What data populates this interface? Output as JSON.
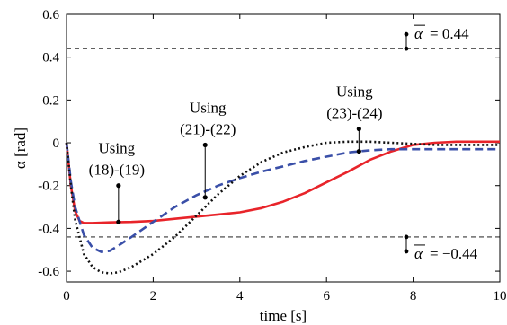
{
  "chart_data": {
    "type": "line",
    "xlabel": "time [s]",
    "ylabel": "α [rad]",
    "xlim": [
      0,
      10
    ],
    "ylim": [
      -0.65,
      0.6
    ],
    "xticks": [
      0,
      2,
      4,
      6,
      8,
      10
    ],
    "xtick_labels": [
      "0",
      "2",
      "4",
      "6",
      "8",
      "10"
    ],
    "yticks": [
      0.6,
      0.4,
      0.2,
      0,
      -0.2,
      -0.4,
      -0.6
    ],
    "ytick_labels": [
      "0.6",
      "0.4",
      "0.2",
      "0",
      "-0.2",
      "-0.4",
      "-0.6"
    ],
    "grid": false,
    "series": [
      {
        "color": "#e8242a",
        "style": "solid",
        "x": [
          0,
          0.1,
          0.2,
          0.3,
          0.4,
          0.6,
          1.0,
          1.5,
          2.0,
          2.5,
          3.0,
          3.5,
          4.0,
          4.5,
          5.0,
          5.5,
          6.0,
          6.5,
          7.0,
          7.5,
          8.0,
          8.5,
          9.0,
          9.5,
          10.0
        ],
        "y": [
          0,
          -0.2,
          -0.32,
          -0.365,
          -0.375,
          -0.375,
          -0.372,
          -0.37,
          -0.365,
          -0.355,
          -0.345,
          -0.335,
          -0.325,
          -0.305,
          -0.275,
          -0.235,
          -0.185,
          -0.135,
          -0.08,
          -0.04,
          -0.01,
          0.0,
          0.005,
          0.005,
          0.005
        ]
      },
      {
        "color": "#3a4fa8",
        "style": "dashed",
        "x": [
          0,
          0.1,
          0.2,
          0.4,
          0.6,
          0.8,
          1.0,
          1.2,
          1.5,
          2.0,
          2.5,
          3.0,
          3.5,
          4.0,
          4.5,
          5.0,
          5.5,
          6.0,
          6.5,
          7.0,
          7.5,
          8.0,
          8.5,
          9.0,
          9.5,
          10.0
        ],
        "y": [
          0,
          -0.18,
          -0.3,
          -0.43,
          -0.49,
          -0.51,
          -0.505,
          -0.48,
          -0.44,
          -0.37,
          -0.3,
          -0.245,
          -0.2,
          -0.165,
          -0.135,
          -0.11,
          -0.085,
          -0.065,
          -0.045,
          -0.035,
          -0.03,
          -0.03,
          -0.03,
          -0.03,
          -0.03,
          -0.03
        ]
      },
      {
        "color": "#111111",
        "style": "dotted",
        "x": [
          0,
          0.1,
          0.2,
          0.4,
          0.6,
          0.8,
          1.0,
          1.2,
          1.5,
          2.0,
          2.5,
          3.0,
          3.5,
          4.0,
          4.5,
          5.0,
          5.5,
          6.0,
          6.5,
          7.0,
          7.5,
          8.0,
          8.5,
          9.0,
          9.5,
          10.0
        ],
        "y": [
          0,
          -0.2,
          -0.36,
          -0.52,
          -0.58,
          -0.605,
          -0.61,
          -0.605,
          -0.58,
          -0.52,
          -0.44,
          -0.34,
          -0.24,
          -0.155,
          -0.09,
          -0.045,
          -0.02,
          0.0,
          0.005,
          0.005,
          0.0,
          -0.005,
          -0.01,
          -0.01,
          -0.01,
          -0.01
        ]
      }
    ],
    "hlines": [
      {
        "y": 0.44,
        "label_symbol": "α",
        "label_value": "= 0.44"
      },
      {
        "y": -0.44,
        "label_symbol": "α",
        "label_value": "= −0.44"
      }
    ],
    "annotations": [
      {
        "lines": [
          "Using",
          "(18)-(19)"
        ],
        "x": 1.2,
        "y": -0.37,
        "stem_top": -0.2
      },
      {
        "lines": [
          "Using",
          "(21)-(22)"
        ],
        "x": 3.2,
        "y": -0.255,
        "stem_top": -0.01
      },
      {
        "lines": [
          "Using",
          "(23)-(24)"
        ],
        "x": 6.75,
        "y": -0.04,
        "stem_top": 0.065
      }
    ]
  }
}
